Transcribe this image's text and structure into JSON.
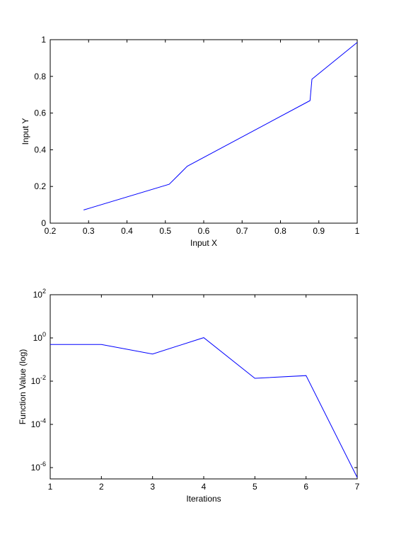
{
  "chart_data": [
    {
      "type": "line",
      "xlabel": "Input X",
      "ylabel": "Input Y",
      "xlim": [
        0.2,
        1
      ],
      "ylim": [
        0,
        1
      ],
      "xticks": [
        0.2,
        0.3,
        0.4,
        0.5,
        0.6,
        0.7,
        0.8,
        0.9,
        1
      ],
      "xtick_labels": [
        "0.2",
        "0.3",
        "0.4",
        "0.5",
        "0.6",
        "0.7",
        "0.8",
        "0.9",
        "1"
      ],
      "yticks": [
        0,
        0.2,
        0.4,
        0.6,
        0.8,
        1
      ],
      "ytick_labels": [
        "0",
        "0.2",
        "0.4",
        "0.6",
        "0.8",
        "1"
      ],
      "grid": false,
      "line_color": "#0000ff",
      "series": [
        {
          "x": [
            0.287,
            0.51,
            0.557,
            0.877,
            0.882,
            1.0
          ],
          "y": [
            0.072,
            0.212,
            0.31,
            0.668,
            0.785,
            0.985
          ]
        }
      ]
    },
    {
      "type": "line",
      "xlabel": "Iterations",
      "ylabel": "Function Value (log)",
      "yscale": "log",
      "xlim": [
        1,
        7
      ],
      "ylim": [
        3e-07,
        100
      ],
      "xticks": [
        1,
        2,
        3,
        4,
        5,
        6,
        7
      ],
      "xtick_labels": [
        "1",
        "2",
        "3",
        "4",
        "5",
        "6",
        "7"
      ],
      "yticks": [
        100,
        1,
        0.01,
        0.0001,
        1e-06
      ],
      "ytick_labels": [
        {
          "base": "10",
          "exp": "2"
        },
        {
          "base": "10",
          "exp": "0"
        },
        {
          "base": "10",
          "exp": "-2"
        },
        {
          "base": "10",
          "exp": "-4"
        },
        {
          "base": "10",
          "exp": "-6"
        }
      ],
      "grid": false,
      "line_color": "#0000ff",
      "series": [
        {
          "x": [
            1,
            2,
            3,
            4,
            5,
            6,
            7
          ],
          "y": [
            0.5,
            0.5,
            0.18,
            1.03,
            0.0135,
            0.018,
            3.5e-07
          ]
        }
      ]
    }
  ]
}
